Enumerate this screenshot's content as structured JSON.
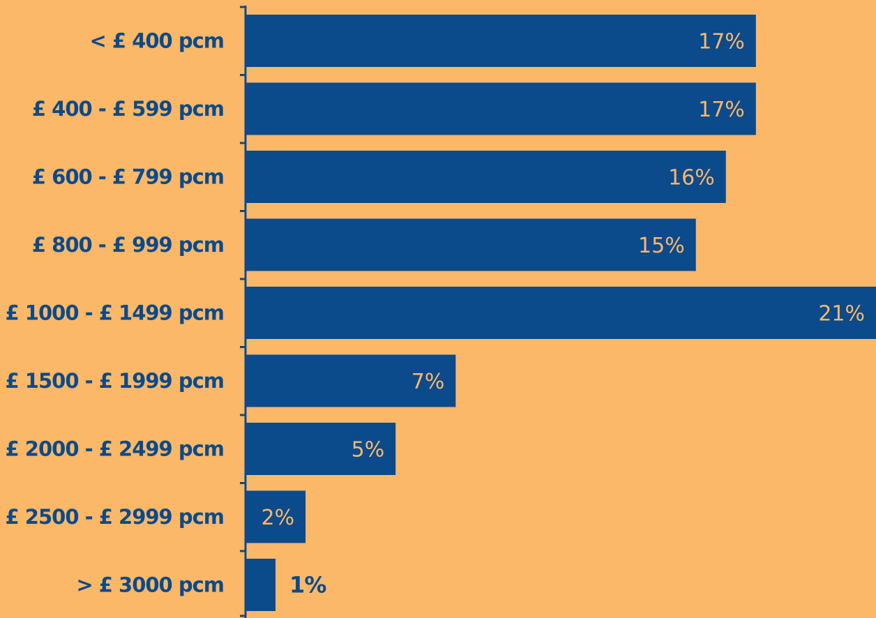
{
  "chart_data": {
    "type": "bar",
    "orientation": "horizontal",
    "categories": [
      "< £ 400 pcm",
      "£ 400 - £ 599 pcm",
      "£ 600 - £ 799 pcm",
      "£ 800 - £ 999 pcm",
      "£ 1000 - £ 1499 pcm",
      "£ 1500 - £ 1999 pcm",
      "£ 2000 - £ 2499 pcm",
      "£ 2500 - £ 2999 pcm",
      "> £ 3000 pcm"
    ],
    "values": [
      17,
      17,
      16,
      15,
      21,
      7,
      5,
      2,
      1
    ],
    "value_labels": [
      "17%",
      "17%",
      "16%",
      "15%",
      "21%",
      "7%",
      "5%",
      "2%",
      "1%"
    ],
    "unit": "%",
    "title": "",
    "xlabel": "",
    "ylabel": "",
    "xlim": [
      0,
      21
    ],
    "grid": false,
    "legend": "none"
  },
  "colors": {
    "background": "#FBB868",
    "bar": "#0B4A8B",
    "inside_label": "#FBB868",
    "outside_label": "#0B4A8B",
    "axis": "#0B4A8B"
  }
}
